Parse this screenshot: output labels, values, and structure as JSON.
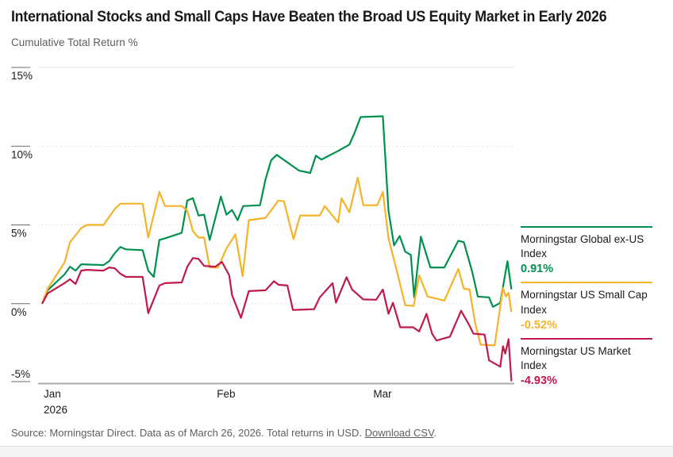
{
  "header": {
    "title": "International Stocks and Small Caps Have Beaten the Broad US Equity Market in Early 2026",
    "subtitle": "Cumulative Total Return %"
  },
  "colors": {
    "green": "#00914e",
    "gold": "#f5b32a",
    "red": "#c01a4b",
    "grid_solid": "#e4e4e4",
    "grid_dotted": "#d8d8d8",
    "axis": "#ababab",
    "tick": "#6b6b6b",
    "text_dark": "#1a1a1a",
    "text_gray": "#5e5e5e"
  },
  "legend": {
    "items": [
      {
        "label": "Morningstar Global ex-US Index",
        "value": "0.91%"
      },
      {
        "label": "Morningstar US Small Cap Index",
        "value": "-0.52%"
      },
      {
        "label": "Morningstar US Market Index",
        "value": "-4.93%"
      }
    ]
  },
  "source": {
    "prefix": "Source: Morningstar Direct. Data as of March 26, 2026. Total returns in USD. ",
    "link": "Download CSV",
    "suffix": "."
  },
  "chart_data": {
    "type": "line",
    "title": "International Stocks and Small Caps Have Beaten the Broad US Equity Market in Early 2026",
    "ylabel": "Cumulative Total Return %",
    "x_unit": "days since Jan 1, 2026",
    "x_range_days": [
      0,
      84
    ],
    "x_tick_labels": [
      "Jan",
      "Feb",
      "Mar"
    ],
    "x_tick_days": [
      0,
      31,
      59
    ],
    "x_year_label": "2026",
    "ylim": [
      -5,
      15
    ],
    "yticks": [
      "15%",
      "10%",
      "5%",
      "0%",
      "-5%"
    ],
    "ytick_values": [
      15,
      10,
      5,
      0,
      -5
    ],
    "grid": "horizontal-dotted",
    "legend_position": "right",
    "series": [
      {
        "name": "Morningstar Global ex-US Index",
        "final_label": "0.91%",
        "color_key": "green",
        "points": [
          [
            0,
            0
          ],
          [
            1,
            0.85
          ],
          [
            4,
            1.85
          ],
          [
            5,
            2.35
          ],
          [
            6,
            2.1
          ],
          [
            7,
            2.5
          ],
          [
            11,
            2.45
          ],
          [
            12,
            2.7
          ],
          [
            13,
            3.2
          ],
          [
            14,
            3.6
          ],
          [
            15,
            3.45
          ],
          [
            18,
            3.4
          ],
          [
            19,
            2.1
          ],
          [
            20,
            1.7
          ],
          [
            21,
            4.05
          ],
          [
            22,
            4.15
          ],
          [
            25,
            4.5
          ],
          [
            26,
            6.55
          ],
          [
            27,
            6.7
          ],
          [
            28,
            5.6
          ],
          [
            29,
            5.65
          ],
          [
            30,
            4.05
          ],
          [
            32,
            6.8
          ],
          [
            33,
            5.65
          ],
          [
            34,
            5.95
          ],
          [
            35,
            5.3
          ],
          [
            36,
            6.2
          ],
          [
            39,
            6.25
          ],
          [
            40,
            7.9
          ],
          [
            41,
            9.1
          ],
          [
            42,
            9.45
          ],
          [
            46,
            8.45
          ],
          [
            48,
            8.3
          ],
          [
            49,
            9.4
          ],
          [
            50,
            9.15
          ],
          [
            53,
            9.7
          ],
          [
            55,
            10.1
          ],
          [
            56,
            10.9
          ],
          [
            57,
            11.85
          ],
          [
            61,
            11.9
          ],
          [
            62,
            5.9
          ],
          [
            63,
            3.7
          ],
          [
            64,
            4.3
          ],
          [
            65,
            3.3
          ],
          [
            66,
            3.1
          ],
          [
            66.6,
            0.4
          ],
          [
            67.8,
            4.25
          ],
          [
            69.5,
            2.3
          ],
          [
            72,
            2.3
          ],
          [
            74.5,
            4.0
          ],
          [
            75.5,
            3.9
          ],
          [
            77,
            2.0
          ],
          [
            78,
            0.45
          ],
          [
            80,
            0.4
          ],
          [
            80.7,
            -0.2
          ],
          [
            82,
            0.05
          ],
          [
            83.3,
            2.7
          ],
          [
            84,
            0.91
          ]
        ]
      },
      {
        "name": "Morningstar US Small Cap Index",
        "final_label": "-0.52%",
        "color_key": "gold",
        "points": [
          [
            0,
            0
          ],
          [
            1,
            0.95
          ],
          [
            4,
            2.6
          ],
          [
            5,
            3.9
          ],
          [
            6,
            4.35
          ],
          [
            7,
            4.8
          ],
          [
            8,
            5.0
          ],
          [
            11,
            5.0
          ],
          [
            12,
            5.5
          ],
          [
            13,
            6.0
          ],
          [
            14,
            6.35
          ],
          [
            18,
            6.35
          ],
          [
            19,
            4.2
          ],
          [
            21,
            7.1
          ],
          [
            22,
            6.2
          ],
          [
            25,
            6.2
          ],
          [
            26,
            5.9
          ],
          [
            27,
            4.6
          ],
          [
            28,
            4.2
          ],
          [
            29,
            4.2
          ],
          [
            30,
            2.3
          ],
          [
            31.5,
            2.3
          ],
          [
            33,
            3.5
          ],
          [
            34.6,
            4.4
          ],
          [
            35.9,
            1.75
          ],
          [
            37,
            5.3
          ],
          [
            40,
            5.45
          ],
          [
            42.3,
            6.55
          ],
          [
            43.3,
            6.5
          ],
          [
            45,
            4.1
          ],
          [
            46.2,
            5.6
          ],
          [
            49.7,
            5.6
          ],
          [
            50.6,
            6.2
          ],
          [
            53,
            5.15
          ],
          [
            53.6,
            6.7
          ],
          [
            55,
            5.8
          ],
          [
            56.5,
            8.0
          ],
          [
            57.5,
            6.25
          ],
          [
            60,
            6.25
          ],
          [
            61,
            7.1
          ],
          [
            62,
            4.15
          ],
          [
            63.7,
            1.8
          ],
          [
            65,
            -0.1
          ],
          [
            66.5,
            -0.15
          ],
          [
            67.5,
            1.8
          ],
          [
            69,
            0.45
          ],
          [
            72,
            0.2
          ],
          [
            74.5,
            2.2
          ],
          [
            75.5,
            0.95
          ],
          [
            76.5,
            0.9
          ],
          [
            77.5,
            -1.2
          ],
          [
            78.5,
            -2.6
          ],
          [
            81,
            -2.65
          ],
          [
            82.5,
            1.0
          ],
          [
            83,
            0.45
          ],
          [
            83.5,
            0.7
          ],
          [
            84,
            -0.52
          ]
        ]
      },
      {
        "name": "Morningstar US Market Index",
        "final_label": "-4.93%",
        "color_key": "red",
        "points": [
          [
            0,
            0
          ],
          [
            1,
            0.65
          ],
          [
            4,
            1.3
          ],
          [
            5,
            1.55
          ],
          [
            6,
            1.25
          ],
          [
            7,
            2.1
          ],
          [
            8,
            2.15
          ],
          [
            11,
            2.1
          ],
          [
            12,
            2.3
          ],
          [
            13,
            2.25
          ],
          [
            14,
            1.9
          ],
          [
            15,
            1.7
          ],
          [
            18,
            1.7
          ],
          [
            19,
            -0.6
          ],
          [
            21,
            1.15
          ],
          [
            22,
            1.3
          ],
          [
            25,
            1.35
          ],
          [
            26,
            2.35
          ],
          [
            27,
            2.9
          ],
          [
            28,
            2.85
          ],
          [
            29,
            2.4
          ],
          [
            31,
            2.35
          ],
          [
            32.2,
            2.65
          ],
          [
            33.5,
            1.8
          ],
          [
            34,
            0.55
          ],
          [
            35.6,
            -0.9
          ],
          [
            37,
            0.8
          ],
          [
            40,
            0.85
          ],
          [
            41.5,
            1.43
          ],
          [
            42.3,
            1.2
          ],
          [
            43.9,
            1.15
          ],
          [
            44.9,
            -0.4
          ],
          [
            48.7,
            -0.35
          ],
          [
            49.7,
            0.4
          ],
          [
            52,
            1.3
          ],
          [
            52.6,
            0.07
          ],
          [
            54.5,
            1.68
          ],
          [
            55.5,
            0.9
          ],
          [
            57.5,
            0.27
          ],
          [
            59.8,
            0.25
          ],
          [
            61,
            0.9
          ],
          [
            62,
            -0.64
          ],
          [
            62.8,
            0.06
          ],
          [
            64.1,
            -1.5
          ],
          [
            66.4,
            -1.5
          ],
          [
            67.5,
            -1.76
          ],
          [
            68.8,
            -0.64
          ],
          [
            69.8,
            -1.9
          ],
          [
            70.6,
            -2.34
          ],
          [
            73,
            -2.1
          ],
          [
            75,
            -0.45
          ],
          [
            76.5,
            -1.4
          ],
          [
            77.2,
            -1.9
          ],
          [
            79.2,
            -1.96
          ],
          [
            80,
            -3.6
          ],
          [
            82,
            -4.0
          ],
          [
            82.5,
            -2.7
          ],
          [
            82.9,
            -3.17
          ],
          [
            83.5,
            -2.25
          ],
          [
            84,
            -4.93
          ]
        ]
      }
    ]
  }
}
